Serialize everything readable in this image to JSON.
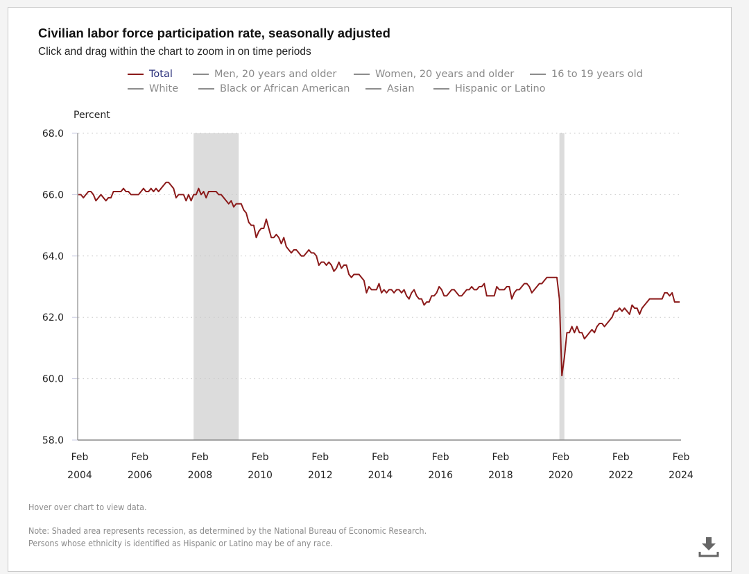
{
  "header": {
    "title": "Civilian labor force participation rate, seasonally adjusted",
    "subtitle": "Click and drag within the chart to zoom in on time periods"
  },
  "legend": [
    {
      "label": "Total",
      "active": true
    },
    {
      "label": "Men, 20 years and older",
      "active": false
    },
    {
      "label": "Women, 20 years and older",
      "active": false
    },
    {
      "label": "16 to 19 years old",
      "active": false
    },
    {
      "label": "White",
      "active": false
    },
    {
      "label": "Black or African American",
      "active": false
    },
    {
      "label": "Asian",
      "active": false
    },
    {
      "label": "Hispanic or Latino",
      "active": false
    }
  ],
  "colors": {
    "series": "#8b1a1a",
    "legend_active_text": "#2a2f7a",
    "legend_inactive": "#8a8a8a",
    "recession": "#dcdcdc",
    "grid": "#c8c8c8"
  },
  "footer": {
    "hover_hint": "Hover over chart to view data.",
    "note_line1": "Note: Shaded area represents recession, as determined by the National Bureau of Economic Research.",
    "note_line2": "Persons whose ethnicity is identified as Hispanic or Latino may be of any race.",
    "download_icon": "download-icon"
  },
  "chart_data": {
    "type": "line",
    "title": "Civilian labor force participation rate, seasonally adjusted",
    "ylabel": "Percent",
    "xlabel": "",
    "ylim": [
      58.0,
      68.0
    ],
    "yticks": [
      "58.0",
      "60.0",
      "62.0",
      "64.0",
      "66.0",
      "68.0"
    ],
    "xticks": [
      {
        "month": "Feb",
        "year": "2004"
      },
      {
        "month": "Feb",
        "year": "2006"
      },
      {
        "month": "Feb",
        "year": "2008"
      },
      {
        "month": "Feb",
        "year": "2010"
      },
      {
        "month": "Feb",
        "year": "2012"
      },
      {
        "month": "Feb",
        "year": "2014"
      },
      {
        "month": "Feb",
        "year": "2016"
      },
      {
        "month": "Feb",
        "year": "2018"
      },
      {
        "month": "Feb",
        "year": "2020"
      },
      {
        "month": "Feb",
        "year": "2022"
      },
      {
        "month": "Feb",
        "year": "2024"
      }
    ],
    "x_start": "2004-02",
    "x_end": "2024-02",
    "grid": "horizontal-dotted",
    "legend_position": "top",
    "recessions": [
      {
        "start": "2007-12",
        "end": "2009-06"
      },
      {
        "start": "2020-02",
        "end": "2020-04"
      }
    ],
    "series": [
      {
        "name": "Total",
        "start": "2004-02",
        "frequency": "monthly",
        "values": [
          66.0,
          66.0,
          65.9,
          66.0,
          66.1,
          66.1,
          66.0,
          65.8,
          65.9,
          66.0,
          65.9,
          65.8,
          65.9,
          65.9,
          66.1,
          66.1,
          66.1,
          66.1,
          66.2,
          66.1,
          66.1,
          66.0,
          66.0,
          66.0,
          66.0,
          66.1,
          66.2,
          66.1,
          66.1,
          66.2,
          66.1,
          66.2,
          66.1,
          66.2,
          66.3,
          66.4,
          66.4,
          66.3,
          66.2,
          65.9,
          66.0,
          66.0,
          66.0,
          65.8,
          66.0,
          65.8,
          66.0,
          66.0,
          66.2,
          66.0,
          66.1,
          65.9,
          66.1,
          66.1,
          66.1,
          66.1,
          66.0,
          66.0,
          65.9,
          65.8,
          65.7,
          65.8,
          65.6,
          65.7,
          65.7,
          65.7,
          65.5,
          65.4,
          65.1,
          65.0,
          65.0,
          64.6,
          64.8,
          64.9,
          64.9,
          65.2,
          64.9,
          64.6,
          64.6,
          64.7,
          64.6,
          64.4,
          64.6,
          64.3,
          64.2,
          64.1,
          64.2,
          64.2,
          64.1,
          64.0,
          64.0,
          64.1,
          64.2,
          64.1,
          64.1,
          64.0,
          63.7,
          63.8,
          63.8,
          63.7,
          63.8,
          63.7,
          63.5,
          63.6,
          63.8,
          63.6,
          63.7,
          63.7,
          63.4,
          63.3,
          63.4,
          63.4,
          63.4,
          63.3,
          63.2,
          62.8,
          63.0,
          62.9,
          62.9,
          62.9,
          63.1,
          62.8,
          62.9,
          62.8,
          62.9,
          62.9,
          62.8,
          62.9,
          62.9,
          62.8,
          62.9,
          62.7,
          62.6,
          62.8,
          62.9,
          62.7,
          62.6,
          62.6,
          62.4,
          62.5,
          62.5,
          62.7,
          62.7,
          62.8,
          63.0,
          62.9,
          62.7,
          62.7,
          62.8,
          62.9,
          62.9,
          62.8,
          62.7,
          62.7,
          62.8,
          62.9,
          62.9,
          63.0,
          62.9,
          62.9,
          63.0,
          63.0,
          63.1,
          62.7,
          62.7,
          62.7,
          62.7,
          63.0,
          62.9,
          62.9,
          62.9,
          63.0,
          63.0,
          62.6,
          62.8,
          62.9,
          62.9,
          63.0,
          63.1,
          63.1,
          63.0,
          62.8,
          62.9,
          63.0,
          63.1,
          63.1,
          63.2,
          63.3,
          63.3,
          63.3,
          63.3,
          63.3,
          62.6,
          60.1,
          60.7,
          61.5,
          61.5,
          61.7,
          61.5,
          61.7,
          61.5,
          61.5,
          61.3,
          61.4,
          61.5,
          61.6,
          61.5,
          61.7,
          61.8,
          61.8,
          61.7,
          61.8,
          61.9,
          62.0,
          62.2,
          62.2,
          62.3,
          62.2,
          62.3,
          62.2,
          62.1,
          62.4,
          62.3,
          62.3,
          62.1,
          62.3,
          62.4,
          62.5,
          62.6,
          62.6,
          62.6,
          62.6,
          62.6,
          62.6,
          62.8,
          62.8,
          62.7,
          62.8,
          62.5,
          62.5,
          62.5
        ]
      }
    ]
  }
}
